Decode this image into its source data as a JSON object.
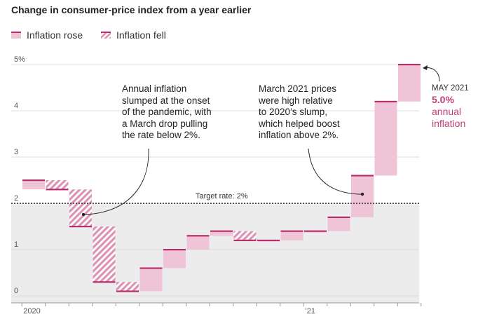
{
  "chart_data": {
    "type": "bar",
    "subtype": "waterfall",
    "title": "Change in consumer-price index from a year earlier",
    "legend": {
      "position": "top-left",
      "rose_label": "Inflation rose",
      "fell_label": "Inflation fell"
    },
    "colors": {
      "rose_fill": "#efc4d6",
      "fell_stripe": "#dc93b4",
      "bar_edge": "#b82f6c",
      "band": "#ececec",
      "highlight": "#c2407a"
    },
    "y_ticks": [
      "0",
      "1",
      "2",
      "3",
      "4",
      "5%"
    ],
    "ylim": [
      -0.1,
      5.2
    ],
    "x_tick_labels": [
      {
        "label": "2020",
        "index": 0
      },
      {
        "label": "’21",
        "index": 12
      }
    ],
    "reference_line": {
      "label": "Target rate: 2%",
      "value": 2.0
    },
    "band": [
      0,
      2
    ],
    "months": [
      {
        "month": "2020-01",
        "value": 2.5
      },
      {
        "month": "2020-02",
        "value": 2.3
      },
      {
        "month": "2020-03",
        "value": 1.5
      },
      {
        "month": "2020-04",
        "value": 0.3
      },
      {
        "month": "2020-05",
        "value": 0.1
      },
      {
        "month": "2020-06",
        "value": 0.6
      },
      {
        "month": "2020-07",
        "value": 1.0
      },
      {
        "month": "2020-08",
        "value": 1.3
      },
      {
        "month": "2020-09",
        "value": 1.4
      },
      {
        "month": "2020-10",
        "value": 1.2
      },
      {
        "month": "2020-11",
        "value": 1.2
      },
      {
        "month": "2020-12",
        "value": 1.4
      },
      {
        "month": "2021-01",
        "value": 1.4
      },
      {
        "month": "2021-02",
        "value": 1.7
      },
      {
        "month": "2021-03",
        "value": 2.6
      },
      {
        "month": "2021-04",
        "value": 4.2
      },
      {
        "month": "2021-05",
        "value": 5.0
      }
    ],
    "annotations": {
      "pandemic_note": [
        "Annual inflation",
        "slumped at the onset",
        "of the pandemic, with",
        "a March drop pulling",
        "the rate below 2%."
      ],
      "march_note": [
        "March 2021 prices",
        "were high relative",
        "to 2020’s slump,",
        "which helped boost",
        "inflation above 2%."
      ],
      "may_label": "MAY 2021",
      "may_value": "5.0%",
      "may_desc": "annual inflation"
    }
  }
}
